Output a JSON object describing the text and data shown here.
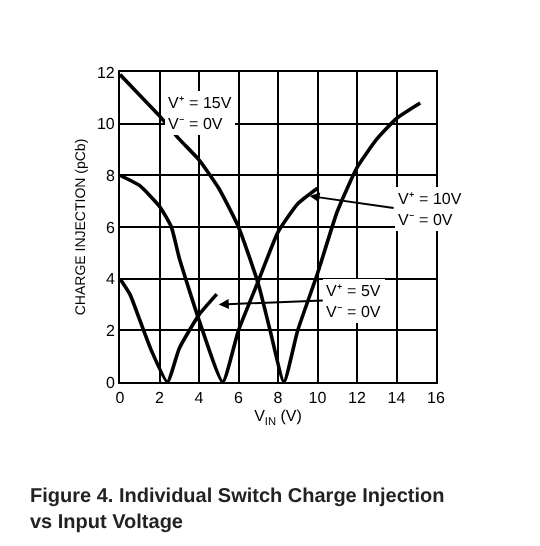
{
  "chart_data": {
    "type": "line",
    "title": "Figure 4. Individual Switch Charge Injection vs Input Voltage",
    "xlabel": "V$_{IN}$ (V)",
    "ylabel": "CHARGE INJECTION (pCb)",
    "series": [
      {
        "color": "#000000",
        "x": [
          0,
          1,
          2,
          3,
          4,
          5,
          6,
          7,
          7.6,
          8.3,
          9,
          10,
          11,
          12,
          13,
          14,
          15.2
        ],
        "values": [
          11.9,
          11.1,
          10.3,
          9.4,
          8.6,
          7.5,
          6,
          3.8,
          2,
          0,
          2,
          4.2,
          6.6,
          8.3,
          9.4,
          10.2,
          10.8
        ]
      },
      {
        "color": "#000000",
        "x": [
          0,
          1,
          2,
          2.6,
          3,
          4,
          5.2,
          6,
          7,
          8,
          9,
          10
        ],
        "values": [
          8,
          7.6,
          6.8,
          6,
          4.8,
          2.4,
          0,
          2,
          3.9,
          5.8,
          6.9,
          7.5
        ]
      },
      {
        "color": "#000000",
        "x": [
          0,
          0.5,
          1,
          1.6,
          2.4,
          3,
          4,
          4.9
        ],
        "values": [
          4,
          3.4,
          2.4,
          1.2,
          0,
          1.3,
          2.6,
          3.4
        ]
      }
    ],
    "annotations": [
      {
        "text": "V⁺ = 15V\nV⁻ = 0V",
        "x": 4,
        "y": 10.4
      },
      {
        "text": "V⁺ = 10V\nV⁻ = 0V",
        "x": 9.6,
        "y": 7.2
      },
      {
        "text": "V⁺ = 5V\nV⁻ = 0V",
        "x": 5,
        "y": 3
      }
    ],
    "xlim": [
      0,
      16
    ],
    "xticks": [
      0,
      2,
      4,
      6,
      8,
      10,
      12,
      14,
      16
    ],
    "ylim": [
      0,
      12
    ],
    "yticks": [
      0,
      2,
      4,
      6,
      8,
      10,
      12
    ],
    "grid": true,
    "marker": "none",
    "line_style": "solid"
  }
}
